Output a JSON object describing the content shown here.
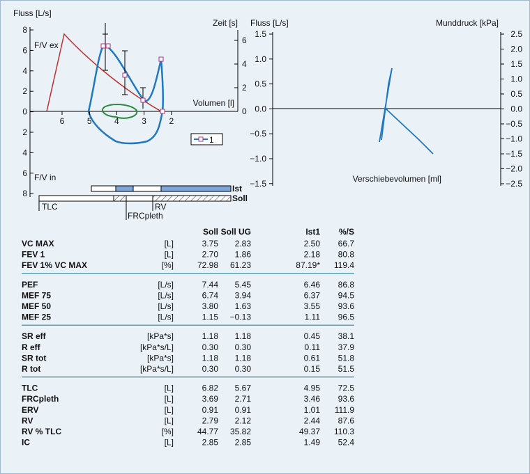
{
  "flow_volume": {
    "y_label": "Fluss [L/s]",
    "y2_label": "Zeit [s]",
    "x_label": "Volumen [l]",
    "ex_label": "F/V ex",
    "in_label": "F/V in",
    "yticks": [
      "8",
      "6",
      "4",
      "2",
      "0",
      "2",
      "4",
      "6",
      "8"
    ],
    "y2ticks": [
      "6",
      "4",
      "2",
      "0"
    ],
    "xticks": [
      "6",
      "5",
      "4",
      "3",
      "2"
    ],
    "legend": "1",
    "bar_labels": [
      "Ist",
      "Soll"
    ],
    "markers": [
      "TLC",
      "FRCpleth",
      "RV"
    ]
  },
  "loop": {
    "y_label": "Fluss [L/s]",
    "y2_label": "Munddruck [kPa]",
    "x_label": "Verschiebevolumen [ml]",
    "yticks": [
      "1.5",
      "1.0",
      "0.5",
      "0.0",
      "−0.5",
      "−1.0",
      "−1.5"
    ],
    "y2ticks": [
      "2.5",
      "2.0",
      "1.5",
      "1.0",
      "0.5",
      "0.0",
      "−0.5",
      "−1.0",
      "−1.5",
      "−2.0",
      "−2.5"
    ]
  },
  "table": {
    "header": [
      "Soll",
      "Soll UG",
      "Ist1",
      "%/S"
    ],
    "sections": [
      [
        [
          "VC MAX",
          "[L]",
          "3.75",
          "2.83",
          "2.50",
          "66.7"
        ],
        [
          "FEV 1",
          "[L]",
          "2.70",
          "1.86",
          "2.18",
          "80.8"
        ],
        [
          "FEV 1% VC MAX",
          "[%]",
          "72.98",
          "61.23",
          "87.19*",
          "119.4"
        ]
      ],
      [
        [
          "PEF",
          "[L/s]",
          "7.44",
          "5.45",
          "6.46",
          "86.8"
        ],
        [
          "MEF 75",
          "[L/s]",
          "6.74",
          "3.94",
          "6.37",
          "94.5"
        ],
        [
          "MEF 50",
          "[L/s]",
          "3.80",
          "1.63",
          "3.55",
          "93.6"
        ],
        [
          "MEF 25",
          "[L/s]",
          "1.15",
          "−0.13",
          "1.11",
          "96.5"
        ]
      ],
      [
        [
          "SR eff",
          "[kPa*s]",
          "1.18",
          "1.18",
          "0.45",
          "38.1"
        ],
        [
          "R eff",
          "[kPa*s/L]",
          "0.30",
          "0.30",
          "0.11",
          "37.9"
        ],
        [
          "SR tot",
          "[kPa*s]",
          "1.18",
          "1.18",
          "0.61",
          "51.8"
        ],
        [
          "R tot",
          "[kPa*s/L]",
          "0.30",
          "0.30",
          "0.15",
          "51.5"
        ]
      ],
      [
        [
          "TLC",
          "[L]",
          "6.82",
          "5.67",
          "4.95",
          "72.5"
        ],
        [
          "FRCpleth",
          "[L]",
          "3.69",
          "2.71",
          "3.46",
          "93.6"
        ],
        [
          "ERV",
          "[L]",
          "0.91",
          "0.91",
          "1.01",
          "111.9"
        ],
        [
          "RV",
          "[L]",
          "2.79",
          "2.12",
          "2.44",
          "87.6"
        ],
        [
          "RV % TLC",
          "[%]",
          "44.77",
          "35.82",
          "49.37",
          "110.3"
        ],
        [
          "IC",
          "[L]",
          "2.85",
          "2.85",
          "1.49",
          "52.4"
        ]
      ]
    ]
  }
}
